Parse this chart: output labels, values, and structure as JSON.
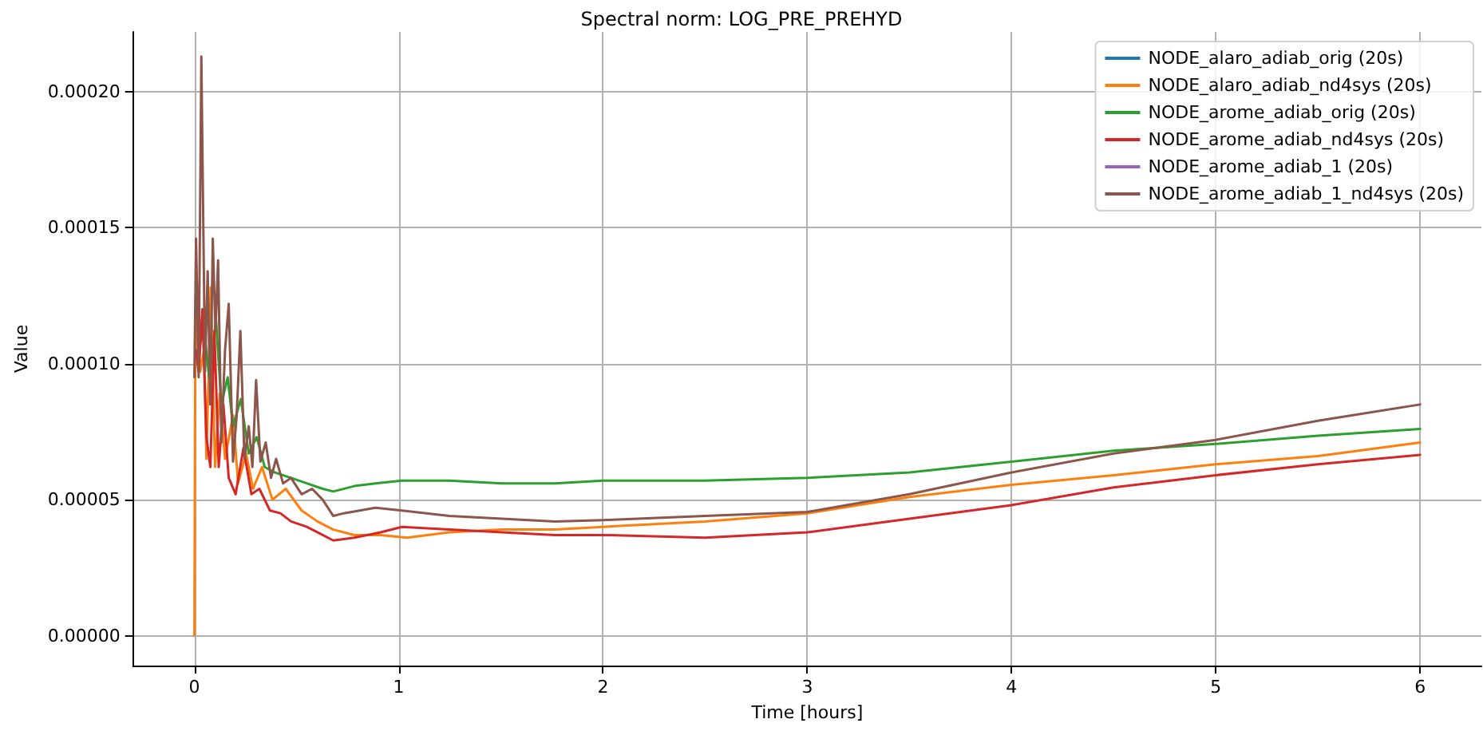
{
  "chart_data": {
    "type": "line",
    "title": "Spectral norm: LOG_PRE_PREHYD",
    "xlabel": "Time [hours]",
    "ylabel": "Value",
    "xlim": [
      -0.3,
      6.3
    ],
    "xticks": [
      0,
      1,
      2,
      3,
      4,
      5,
      6
    ],
    "ylim": [
      -1.1e-05,
      0.000222
    ],
    "yticks": [
      {
        "value": 0,
        "label": "0.00000"
      },
      {
        "value": 5e-05,
        "label": "0.00005"
      },
      {
        "value": 0.0001,
        "label": "0.00010"
      },
      {
        "value": 0.00015,
        "label": "0.00015"
      },
      {
        "value": 0.0002,
        "label": "0.00020"
      }
    ],
    "grid": true,
    "legend": "top right",
    "series": [
      {
        "name": "NODE_alaro_adiab_orig (20s)",
        "color": "#1f77b4"
      },
      {
        "name": "NODE_alaro_adiab_nd4sys (20s)",
        "color": "#ff7f0e",
        "x": [
          0,
          0.004,
          0.013,
          0.028,
          0.047,
          0.059,
          0.08,
          0.101,
          0.124,
          0.15,
          0.189,
          0.214,
          0.253,
          0.287,
          0.331,
          0.382,
          0.447,
          0.525,
          0.602,
          0.68,
          0.783,
          0.912,
          1.041,
          1.248,
          1.506,
          1.765,
          2.0,
          2.5,
          3.0,
          3.5,
          4.0,
          4.5,
          5.0,
          5.5,
          6.0
        ],
        "values": [
          0,
          9.5e-05,
          0.000128,
          9.7e-05,
          0.000105,
          6.5e-05,
          0.000128,
          6.2e-05,
          8.9e-05,
          6.5e-05,
          8.1e-05,
          5.6e-05,
          6.7e-05,
          5.4e-05,
          6.2e-05,
          5e-05,
          5.4e-05,
          4.6e-05,
          4.2e-05,
          3.9e-05,
          3.7e-05,
          3.7e-05,
          3.6e-05,
          3.8e-05,
          3.9e-05,
          3.9e-05,
          4e-05,
          4.2e-05,
          4.5e-05,
          5.1e-05,
          5.55e-05,
          5.9e-05,
          6.3e-05,
          6.6e-05,
          7.1e-05
        ]
      },
      {
        "name": "NODE_arome_adiab_orig (20s)",
        "color": "#2ca02c",
        "x": [
          0.021,
          0.047,
          0.072,
          0.106,
          0.132,
          0.163,
          0.189,
          0.227,
          0.266,
          0.305,
          0.344,
          0.395,
          0.473,
          0.55,
          0.628,
          0.68,
          0.783,
          0.886,
          1.016,
          1.248,
          1.506,
          1.765,
          2.0,
          2.5,
          3.0,
          3.5,
          4.0,
          4.5,
          5.0,
          5.5,
          6.0
        ],
        "values": [
          0.000105,
          0.000113,
          9.5e-05,
          0.000116,
          8.5e-05,
          9.5e-05,
          7.7e-05,
          8.7e-05,
          6.7e-05,
          7.3e-05,
          6.2e-05,
          6e-05,
          5.8e-05,
          5.6e-05,
          5.4e-05,
          5.3e-05,
          5.5e-05,
          5.6e-05,
          5.7e-05,
          5.7e-05,
          5.6e-05,
          5.6e-05,
          5.7e-05,
          5.7e-05,
          5.8e-05,
          6e-05,
          6.4e-05,
          6.8e-05,
          7.05e-05,
          7.35e-05,
          7.6e-05
        ]
      },
      {
        "name": "NODE_arome_adiab_nd4sys (20s)",
        "color": "#d62728",
        "x": [
          0.008,
          0.021,
          0.039,
          0.059,
          0.078,
          0.098,
          0.119,
          0.142,
          0.168,
          0.202,
          0.24,
          0.279,
          0.318,
          0.37,
          0.421,
          0.473,
          0.55,
          0.628,
          0.68,
          0.783,
          0.912,
          1.016,
          1.248,
          1.506,
          1.765,
          2.0,
          2.5,
          3.0,
          3.5,
          4.0,
          4.5,
          5.0,
          5.5,
          6.0
        ],
        "values": [
          0.000105,
          9.7e-05,
          0.00012,
          7.3e-05,
          6.2e-05,
          0.000112,
          6.2e-05,
          8.5e-05,
          5.8e-05,
          5.2e-05,
          6.9e-05,
          5.2e-05,
          5.4e-05,
          4.6e-05,
          4.5e-05,
          4.2e-05,
          4e-05,
          3.7e-05,
          3.5e-05,
          3.6e-05,
          3.8e-05,
          4e-05,
          3.9e-05,
          3.8e-05,
          3.7e-05,
          3.7e-05,
          3.6e-05,
          3.8e-05,
          4.3e-05,
          4.8e-05,
          5.45e-05,
          5.9e-05,
          6.3e-05,
          6.65e-05
        ]
      },
      {
        "name": "NODE_arome_adiab_1 (20s)",
        "color": "#9467bd"
      },
      {
        "name": "NODE_arome_adiab_1_nd4sys (20s)",
        "color": "#8c564b",
        "x": [
          0,
          0.008,
          0.021,
          0.034,
          0.052,
          0.065,
          0.078,
          0.09,
          0.103,
          0.116,
          0.132,
          0.15,
          0.168,
          0.189,
          0.207,
          0.225,
          0.245,
          0.266,
          0.284,
          0.302,
          0.323,
          0.349,
          0.375,
          0.4,
          0.434,
          0.473,
          0.525,
          0.576,
          0.628,
          0.68,
          0.731,
          0.809,
          0.886,
          1.016,
          1.248,
          1.506,
          1.765,
          2.0,
          2.5,
          3.0,
          3.5,
          4.0,
          4.5,
          5.0,
          5.5,
          6.0
        ],
        "values": [
          9.5e-05,
          0.000146,
          9.5e-05,
          0.000213,
          9.7e-05,
          0.000134,
          8.5e-05,
          0.000146,
          0.000112,
          0.000138,
          7.1e-05,
          0.000105,
          0.000122,
          6.4e-05,
          8.1e-05,
          0.000112,
          6.5e-05,
          7.7e-05,
          6.2e-05,
          9.4e-05,
          6.4e-05,
          7.1e-05,
          5.8e-05,
          6.5e-05,
          5.6e-05,
          5.8e-05,
          5.2e-05,
          5.4e-05,
          5e-05,
          4.4e-05,
          4.5e-05,
          4.6e-05,
          4.7e-05,
          4.6e-05,
          4.4e-05,
          4.3e-05,
          4.2e-05,
          4.25e-05,
          4.4e-05,
          4.55e-05,
          5.2e-05,
          6e-05,
          6.7e-05,
          7.2e-05,
          7.9e-05,
          8.5e-05
        ]
      }
    ]
  }
}
